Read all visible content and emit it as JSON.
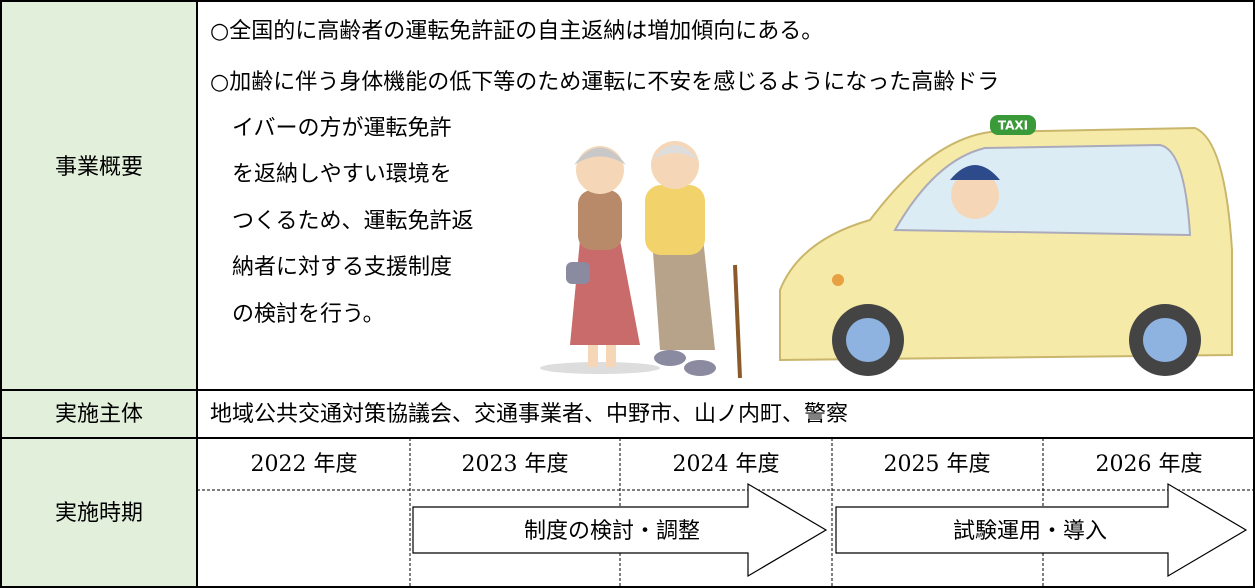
{
  "overview": {
    "label": "事業概要",
    "lines": [
      "○全国的に高齢者の運転免許証の自主返納は増加傾向にある。",
      "○加齢に伴う身体機能の低下等のため運転に不安を感じるようになった高齢ドラ",
      "イバーの方が運転免許",
      "を返納しやすい環境を",
      "つくるため、運転免許返",
      "納者に対する支援制度",
      "の検討を行う。"
    ],
    "sign": "TAXI"
  },
  "implementer": {
    "label": "実施主体",
    "text": "地域公共交通対策協議会、交通事業者、中野市、山ノ内町、警察"
  },
  "schedule": {
    "label": "実施時期",
    "years": [
      "2022 年度",
      "2023 年度",
      "2024 年度",
      "2025 年度",
      "2026 年度"
    ],
    "phases": [
      "制度の検討・調整",
      "試験運用・導入"
    ]
  }
}
